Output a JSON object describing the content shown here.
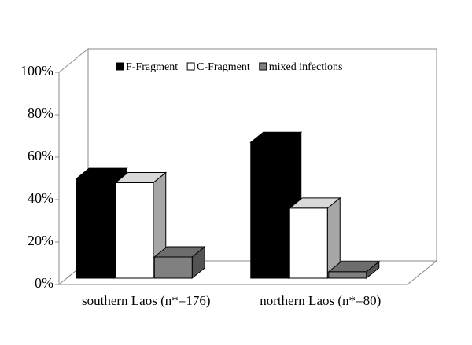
{
  "chart_data": {
    "type": "bar3d",
    "categories": [
      "southern Laos (n*=176)",
      "northern Laos (n*=80)"
    ],
    "series": [
      {
        "name": "F-Fragment",
        "color": "#000000",
        "values": [
          47,
          64
        ]
      },
      {
        "name": "C-Fragment",
        "color": "#ffffff",
        "values": [
          45,
          33
        ]
      },
      {
        "name": "mixed infections",
        "color": "#808080",
        "values": [
          10,
          3
        ]
      }
    ],
    "ylim": [
      0,
      100
    ],
    "yticks": [
      {
        "value": 0,
        "label": "0%"
      },
      {
        "value": 20,
        "label": "20%"
      },
      {
        "value": 40,
        "label": "40%"
      },
      {
        "value": 60,
        "label": "60%"
      },
      {
        "value": 80,
        "label": "80%"
      },
      {
        "value": 100,
        "label": "100%"
      }
    ],
    "legend": "top"
  }
}
